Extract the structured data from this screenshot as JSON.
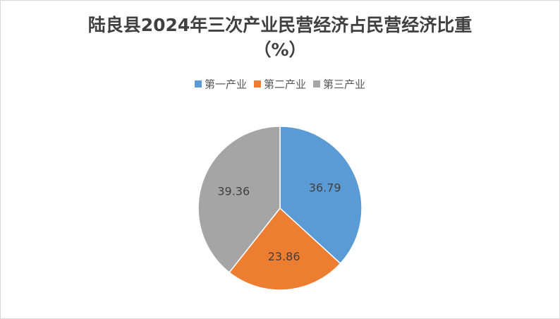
{
  "chart_data": {
    "type": "pie",
    "title": [
      "陆良县2024年三次产业民营经济占民营经济比重",
      "（%）"
    ],
    "categories": [
      "第一产业",
      "第二产业",
      "第三产业"
    ],
    "values": [
      36.79,
      23.86,
      39.36
    ],
    "colors": [
      "#5b9bd5",
      "#ed7d31",
      "#a5a5a5"
    ],
    "legend": "top"
  }
}
